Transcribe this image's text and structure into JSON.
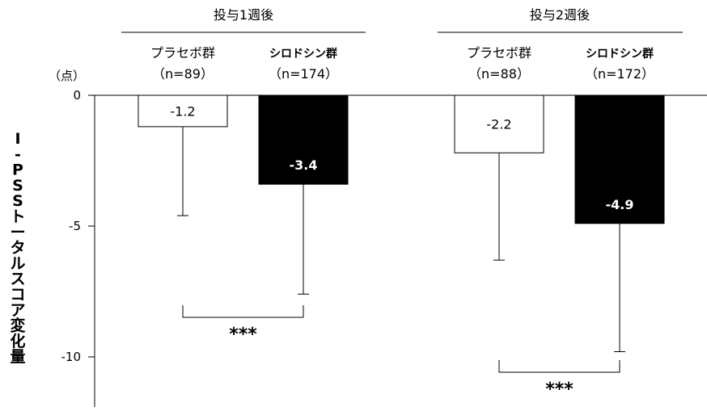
{
  "chart_data": {
    "type": "bar",
    "ylabel": "I-PSSトータルスコア変化量",
    "unit_label": "（点）",
    "ylim": [
      -11.5,
      0
    ],
    "yticks": [
      0,
      -5,
      -10
    ],
    "grid": false,
    "groups": [
      {
        "label": "投与1週後",
        "bars": [
          {
            "arm": "プラセボ群",
            "n_label": "（n=89）",
            "value": -1.2,
            "value_label": "-1.2",
            "error_low": -4.6,
            "fill": "#ffffff"
          },
          {
            "arm": "シロドシン群",
            "n_label": "（n=174）",
            "value": -3.4,
            "value_label": "-3.4",
            "error_low": -7.6,
            "fill": "#000000"
          }
        ],
        "significance": "***"
      },
      {
        "label": "投与2週後",
        "bars": [
          {
            "arm": "プラセボ群",
            "n_label": "（n=88）",
            "value": -2.2,
            "value_label": "-2.2",
            "error_low": -6.3,
            "fill": "#ffffff"
          },
          {
            "arm": "シロドシン群",
            "n_label": "（n=172）",
            "value": -4.9,
            "value_label": "-4.9",
            "error_low": -9.8,
            "fill": "#000000"
          }
        ],
        "significance": "***"
      }
    ]
  }
}
